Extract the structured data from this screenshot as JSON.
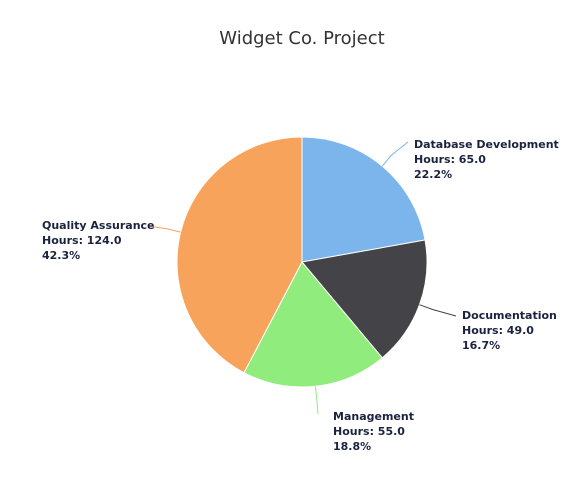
{
  "chart_data": {
    "type": "pie",
    "title": "Widget Co. Project",
    "unit_label": "Hours",
    "slices": [
      {
        "label": "Database Development",
        "value": 65.0,
        "value_text": "Hours: 65.0",
        "percent_text": "22.2%",
        "color": "#7cb5ec"
      },
      {
        "label": "Documentation",
        "value": 49.0,
        "value_text": "Hours: 49.0",
        "percent_text": "16.7%",
        "color": "#434348"
      },
      {
        "label": "Management",
        "value": 55.0,
        "value_text": "Hours: 55.0",
        "percent_text": "18.8%",
        "color": "#90ed7d"
      },
      {
        "label": "Quality Assurance",
        "value": 124.0,
        "value_text": "Hours: 124.0",
        "percent_text": "42.3%",
        "color": "#f7a35c"
      }
    ]
  }
}
